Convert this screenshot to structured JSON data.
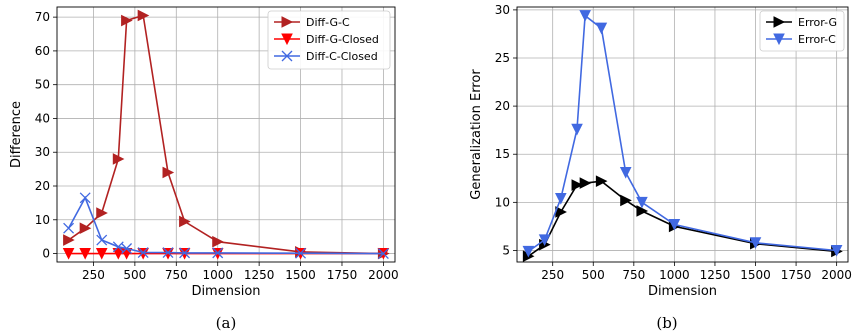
{
  "chart_data": [
    {
      "type": "line",
      "caption": "(a)",
      "xlabel": "Dimension",
      "ylabel": "Difference",
      "xlim": [
        30,
        2070
      ],
      "ylim": [
        -2.5,
        73
      ],
      "xticks": [
        250,
        500,
        750,
        1000,
        1250,
        1500,
        1750,
        2000
      ],
      "yticks": [
        0,
        10,
        20,
        30,
        40,
        50,
        60,
        70
      ],
      "grid": true,
      "legend_position": "top-right",
      "series": [
        {
          "name": "Diff-G-C",
          "color": "#b22222",
          "marker": "triangle-right",
          "x": [
            100,
            200,
            300,
            400,
            450,
            550,
            700,
            800,
            1000,
            1500,
            2000
          ],
          "y": [
            4,
            7.5,
            12,
            28,
            69,
            70.5,
            24,
            9.5,
            3.5,
            0.5,
            0
          ]
        },
        {
          "name": "Diff-G-Closed",
          "color": "#ff0000",
          "marker": "triangle-down",
          "x": [
            100,
            200,
            300,
            400,
            450,
            550,
            700,
            800,
            1000,
            1500,
            2000
          ],
          "y": [
            0,
            0,
            0,
            0,
            0,
            0,
            0,
            0,
            0,
            0,
            0
          ]
        },
        {
          "name": "Diff-C-Closed",
          "color": "#4169e1",
          "marker": "x",
          "x": [
            100,
            200,
            300,
            400,
            450,
            550,
            700,
            800,
            1000,
            1500,
            2000
          ],
          "y": [
            7.5,
            16.5,
            4,
            2,
            1.5,
            0.3,
            0.3,
            0.2,
            0.2,
            0.1,
            0
          ]
        }
      ]
    },
    {
      "type": "line",
      "caption": "(b)",
      "xlabel": "Dimension",
      "ylabel": "Generalization Error",
      "xlim": [
        30,
        2070
      ],
      "ylim": [
        3.8,
        30.3
      ],
      "xticks": [
        250,
        500,
        750,
        1000,
        1250,
        1500,
        1750,
        2000
      ],
      "yticks": [
        5,
        10,
        15,
        20,
        25,
        30
      ],
      "grid": true,
      "legend_position": "top-right",
      "series": [
        {
          "name": "Error-G",
          "color": "#000000",
          "marker": "triangle-right",
          "x": [
            100,
            200,
            300,
            400,
            450,
            550,
            700,
            800,
            1000,
            1500,
            2000
          ],
          "y": [
            4.4,
            5.6,
            9.0,
            11.8,
            12.0,
            12.2,
            10.2,
            9.1,
            7.5,
            5.7,
            4.9
          ]
        },
        {
          "name": "Error-C",
          "color": "#4169e1",
          "marker": "triangle-down",
          "x": [
            100,
            200,
            300,
            400,
            450,
            550,
            700,
            800,
            1000,
            1500,
            2000
          ],
          "y": [
            4.9,
            6.1,
            10.4,
            17.6,
            29.4,
            28.1,
            13.1,
            10.0,
            7.7,
            5.8,
            5.0
          ]
        }
      ]
    }
  ]
}
